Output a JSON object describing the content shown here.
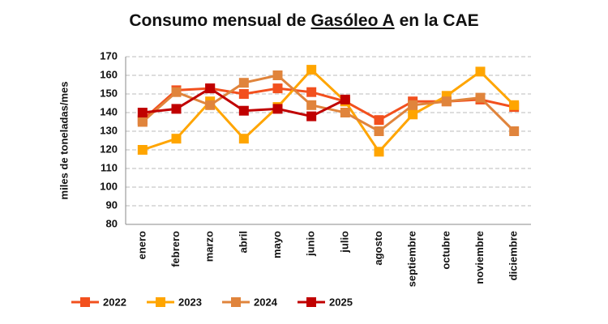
{
  "chart_data": {
    "type": "line",
    "title": {
      "before": "Consumo mensual de",
      "underlined": "Gasóleo A",
      "after": "en la CAE"
    },
    "ylabel": "miles de toneladas/mes",
    "categories": [
      "enero",
      "febrero",
      "marzo",
      "abril",
      "mayo",
      "junio",
      "julio",
      "agosto",
      "septiembre",
      "octubre",
      "noviembre",
      "diciembre"
    ],
    "series": [
      {
        "name": "2022",
        "color": "#f2501e",
        "values": [
          136,
          152,
          153,
          150,
          153,
          151,
          146,
          136,
          146,
          146,
          147,
          143
        ]
      },
      {
        "name": "2023",
        "color": "#ffa500",
        "values": [
          120,
          126,
          146,
          126,
          143,
          163,
          146,
          119,
          139,
          149,
          162,
          144
        ]
      },
      {
        "name": "2024",
        "color": "#e0843c",
        "values": [
          135,
          151,
          144,
          156,
          160,
          144,
          140,
          130,
          144,
          146,
          148,
          130
        ]
      },
      {
        "name": "2025",
        "color": "#c00000",
        "values": [
          140,
          142,
          153,
          141,
          142,
          138,
          147,
          null,
          null,
          null,
          null,
          null
        ]
      }
    ],
    "ylim": [
      80,
      170
    ],
    "yticks": [
      80,
      90,
      100,
      110,
      120,
      130,
      140,
      150,
      160,
      170
    ],
    "grid": true,
    "legend": "bottom"
  }
}
